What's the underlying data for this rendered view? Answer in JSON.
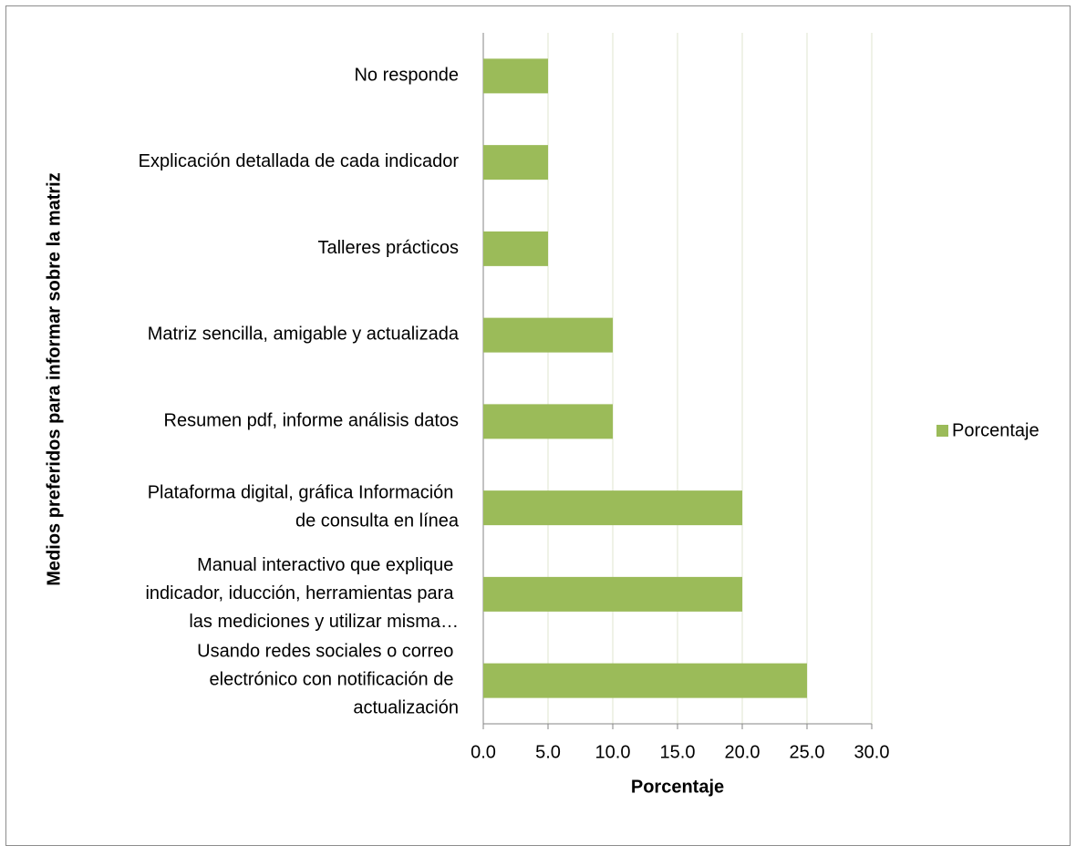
{
  "chart_data": {
    "type": "bar",
    "orientation": "horizontal",
    "y_label": "Medios preferidos para informar sobre la matriz",
    "x_label": "Porcentaje",
    "categories": [
      "No responde",
      "Explicación detallada de cada indicador",
      "Talleres prácticos",
      "Matriz sencilla, amigable y actualizada",
      "Resumen pdf, informe análisis datos",
      "Plataforma digital, gráfica Información de consulta en línea",
      "Manual interactivo que explique indicador, iducción, herramientas para las mediciones y utilizar misma…",
      "Usando redes sociales o correo electrónico con notificación de actualización"
    ],
    "series": [
      {
        "name": "Porcentaje",
        "color": "#9bbb59",
        "values": [
          5,
          5,
          5,
          10,
          10,
          20,
          20,
          25
        ]
      }
    ],
    "xlim": [
      0,
      30
    ],
    "xticks": [
      {
        "value": 0,
        "label": "0.0"
      },
      {
        "value": 5,
        "label": "5.0"
      },
      {
        "value": 10,
        "label": "10.0"
      },
      {
        "value": 15,
        "label": "15.0"
      },
      {
        "value": 20,
        "label": "20.0"
      },
      {
        "value": 25,
        "label": "25.0"
      },
      {
        "value": 30,
        "label": "30.0"
      }
    ],
    "grid": true,
    "legend": "right"
  }
}
